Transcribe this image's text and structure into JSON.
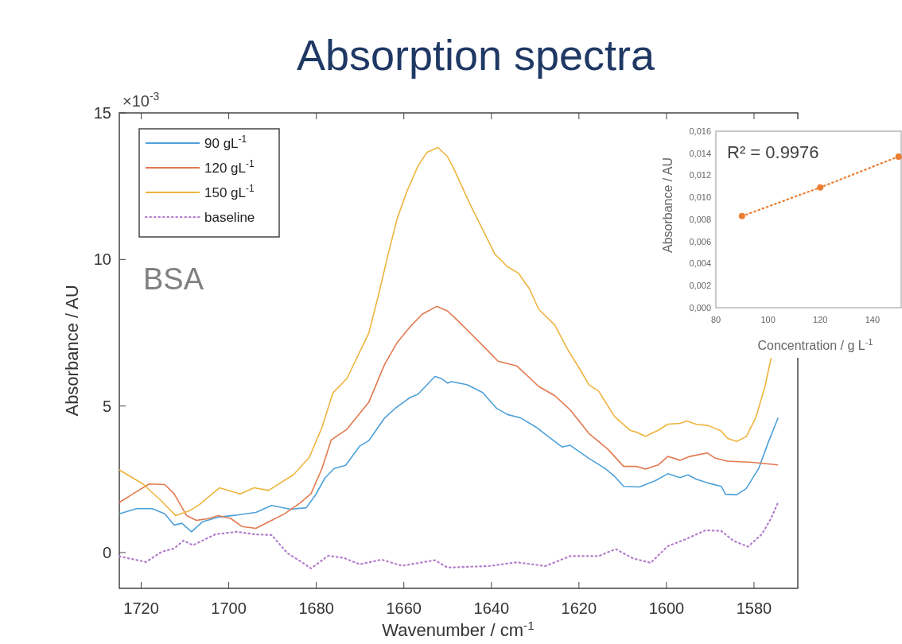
{
  "chart_data": [
    {
      "type": "line",
      "title": "Absorption spectra",
      "xlabel": "Wavenumber / cm$^{-1}$",
      "ylabel": "Absorbance / AU",
      "annotations": [
        "×10$^{-3}$",
        "BSA"
      ],
      "xlim": [
        1725,
        1570
      ],
      "xticks": [
        1720,
        1700,
        1680,
        1660,
        1640,
        1620,
        1600,
        1580
      ],
      "ylim": [
        -1.22,
        15
      ],
      "yticks": [
        0,
        5,
        10,
        15
      ],
      "legend": "top left",
      "series": [
        {
          "name": "90 gL$^{-1}$",
          "color": "#4ea1d9",
          "x": [
            1725,
            1721.1,
            1717.5,
            1714.6,
            1712.5,
            1710.7,
            1708.5,
            1706.0,
            1702.4,
            1698.1,
            1693.8,
            1690.2,
            1685.9,
            1682.3,
            1680.2,
            1678.0,
            1675.9,
            1673.3,
            1670.1,
            1668.0,
            1664.4,
            1661.9,
            1658.6,
            1656.8,
            1652.9,
            1651.4,
            1650.0,
            1649.2,
            1645.6,
            1642.0,
            1638.8,
            1636.3,
            1633.4,
            1629.8,
            1627.0,
            1623.8,
            1622.0,
            1617.7,
            1614.1,
            1611.9,
            1609.8,
            1606.2,
            1602.6,
            1599.7,
            1596.9,
            1595.1,
            1593.3,
            1590.4,
            1587.5,
            1586.5,
            1584.0,
            1581.8,
            1578.9,
            1576.8,
            1574.5
          ],
          "values": [
            1.32,
            1.5,
            1.5,
            1.32,
            0.94,
            1.0,
            0.71,
            1.05,
            1.21,
            1.28,
            1.37,
            1.61,
            1.48,
            1.53,
            1.96,
            2.55,
            2.87,
            2.98,
            3.63,
            3.82,
            4.59,
            4.93,
            5.29,
            5.4,
            6.01,
            5.94,
            5.78,
            5.83,
            5.73,
            5.46,
            4.92,
            4.71,
            4.6,
            4.28,
            3.96,
            3.6,
            3.66,
            3.21,
            2.88,
            2.61,
            2.26,
            2.24,
            2.45,
            2.69,
            2.56,
            2.65,
            2.51,
            2.37,
            2.26,
            1.99,
            1.97,
            2.18,
            2.88,
            3.74,
            4.6
          ]
        },
        {
          "name": "120 gL$^{-1}$",
          "color": "#e2794f",
          "x": [
            1725,
            1721.8,
            1718.2,
            1714.6,
            1712.5,
            1709.6,
            1707.4,
            1704.6,
            1702.4,
            1699.5,
            1697.0,
            1693.8,
            1690.2,
            1687.3,
            1683.7,
            1681.2,
            1678.7,
            1676.6,
            1673.0,
            1668.0,
            1664.4,
            1661.5,
            1658.6,
            1655.8,
            1652.5,
            1650.0,
            1647.8,
            1644.9,
            1641.3,
            1638.5,
            1634.2,
            1629.2,
            1625.5,
            1622.0,
            1617.7,
            1613.4,
            1609.8,
            1606.9,
            1604.8,
            1601.9,
            1599.7,
            1596.9,
            1594.7,
            1590.7,
            1589.0,
            1586.1,
            1580.4,
            1574.5
          ],
          "values": [
            1.71,
            2.01,
            2.34,
            2.32,
            2.01,
            1.26,
            1.1,
            1.16,
            1.26,
            1.16,
            0.89,
            0.83,
            1.1,
            1.32,
            1.69,
            2.01,
            2.87,
            3.84,
            4.21,
            5.13,
            6.42,
            7.17,
            7.7,
            8.13,
            8.4,
            8.24,
            7.93,
            7.5,
            6.96,
            6.53,
            6.37,
            5.67,
            5.35,
            4.87,
            4.06,
            3.53,
            2.94,
            2.94,
            2.85,
            2.99,
            3.28,
            3.15,
            3.28,
            3.4,
            3.23,
            3.12,
            3.08,
            2.99
          ]
        },
        {
          "name": "150 gL$^{-1}$",
          "color": "#eeb43e",
          "x": [
            1725,
            1719.6,
            1715.3,
            1712.1,
            1708.9,
            1706.7,
            1702.1,
            1697.4,
            1694.2,
            1690.9,
            1685.2,
            1681.6,
            1678.7,
            1676.2,
            1673.0,
            1668.0,
            1665.8,
            1663.6,
            1661.5,
            1659.3,
            1656.8,
            1654.7,
            1652.2,
            1650.0,
            1648.5,
            1644.9,
            1639.2,
            1636.3,
            1633.8,
            1631.3,
            1629.2,
            1625.5,
            1622.7,
            1619.8,
            1617.7,
            1615.5,
            1611.9,
            1608.3,
            1606.9,
            1604.8,
            1601.9,
            1599.7,
            1596.9,
            1595.4,
            1593.3,
            1590.4,
            1587.5,
            1586.1,
            1584.0,
            1581.8,
            1579.6,
            1577.5,
            1576.1
          ],
          "values": [
            2.82,
            2.34,
            1.75,
            1.26,
            1.43,
            1.64,
            2.21,
            2.0,
            2.21,
            2.12,
            2.66,
            3.25,
            4.27,
            5.45,
            5.94,
            7.49,
            8.78,
            10.17,
            11.41,
            12.32,
            13.18,
            13.66,
            13.82,
            13.5,
            13.07,
            11.89,
            10.18,
            9.75,
            9.53,
            9.0,
            8.3,
            7.76,
            6.96,
            6.26,
            5.72,
            5.51,
            4.65,
            4.17,
            4.11,
            3.97,
            4.17,
            4.38,
            4.41,
            4.49,
            4.38,
            4.33,
            4.15,
            3.9,
            3.79,
            3.95,
            4.6,
            5.67,
            6.64
          ]
        },
        {
          "name": "baseline",
          "color": "#b27ccb",
          "line_style": "dotted",
          "x": [
            1725,
            1718.9,
            1715.3,
            1712.5,
            1710.3,
            1708.2,
            1703.1,
            1698.1,
            1693.8,
            1690.2,
            1686.6,
            1683.7,
            1681.2,
            1677.3,
            1673.7,
            1670.1,
            1665.1,
            1660.4,
            1652.9,
            1650.0,
            1646.3,
            1640.6,
            1634.2,
            1627.7,
            1622.0,
            1615.5,
            1611.6,
            1607.6,
            1603.6,
            1599.7,
            1595.4,
            1591.1,
            1587.5,
            1584.7,
            1581.4,
            1578.2,
            1576.1,
            1574.5
          ],
          "values": [
            -0.13,
            -0.32,
            0.03,
            0.14,
            0.41,
            0.25,
            0.62,
            0.71,
            0.62,
            0.6,
            -0.02,
            -0.29,
            -0.54,
            -0.11,
            -0.18,
            -0.4,
            -0.24,
            -0.45,
            -0.26,
            -0.51,
            -0.49,
            -0.46,
            -0.33,
            -0.46,
            -0.12,
            -0.12,
            0.12,
            -0.2,
            -0.35,
            0.22,
            0.47,
            0.76,
            0.74,
            0.4,
            0.2,
            0.63,
            1.17,
            1.72
          ]
        }
      ]
    },
    {
      "type": "line",
      "xlabel": "Concentration / g L$^{-1}$",
      "ylabel": "Absorbance / AU",
      "annotations": [
        "R² = 0.9976"
      ],
      "x": [
        90,
        120,
        150
      ],
      "xlim": [
        80,
        151
      ],
      "xticks": [
        80,
        100,
        120,
        140
      ],
      "ylim": [
        0,
        0.016
      ],
      "yticks": [
        {
          "value": 0,
          "label": "0,000"
        },
        {
          "value": 0.002,
          "label": "0,002"
        },
        {
          "value": 0.004,
          "label": "0,004"
        },
        {
          "value": 0.006,
          "label": "0,006"
        },
        {
          "value": 0.008,
          "label": "0,008"
        },
        {
          "value": 0.01,
          "label": "0,010"
        },
        {
          "value": 0.012,
          "label": "0,012"
        },
        {
          "value": 0.014,
          "label": "0,014"
        },
        {
          "value": 0.016,
          "label": "0,016"
        }
      ],
      "marker": "circle",
      "line_style": "dotted",
      "series": [
        {
          "color": "#ed7d31",
          "values": [
            0.0083,
            0.0109,
            0.0137
          ]
        }
      ]
    }
  ]
}
